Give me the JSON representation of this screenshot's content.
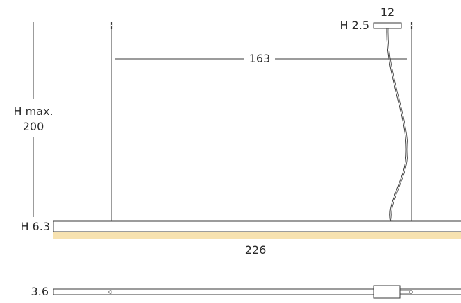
{
  "labels": {
    "height_max_line1": "H max.",
    "height_max_line2": "200",
    "span": "163",
    "canopy_width": "12",
    "canopy_height": "H 2.5",
    "body_height": "H 6.3",
    "total_length": "226",
    "bottom_height": "3.6"
  },
  "colors": {
    "line": "#3a3a3a",
    "light_glow": "#f7e2b0",
    "text": "#2b2b2b"
  }
}
